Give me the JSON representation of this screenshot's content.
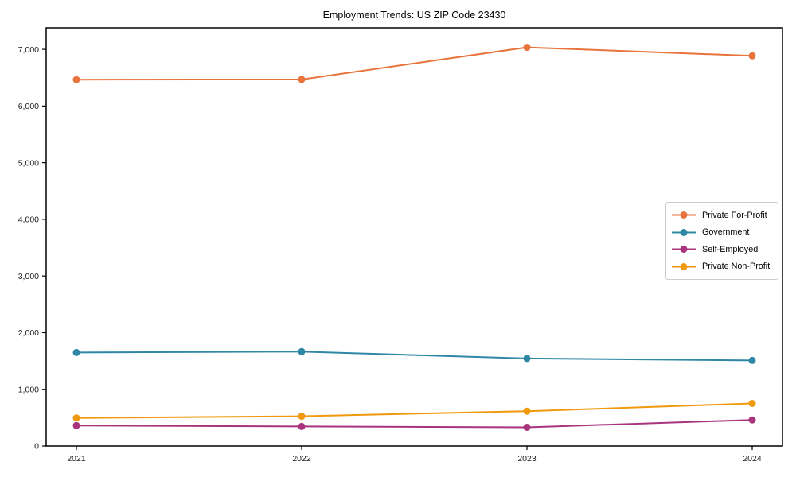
{
  "chart_data": {
    "type": "line",
    "title": "Employment Trends: US ZIP Code 23430",
    "xlabel": "",
    "ylabel": "",
    "categories": [
      "2021",
      "2022",
      "2023",
      "2024"
    ],
    "series": [
      {
        "name": "Private For-Profit",
        "color": "#e8743b",
        "values": [
          6465,
          6470,
          7035,
          6885
        ]
      },
      {
        "name": "Government",
        "color": "#2e87a5",
        "values": [
          1650,
          1665,
          1545,
          1510
        ]
      },
      {
        "name": "Self-Employed",
        "color": "#a8347e",
        "values": [
          360,
          345,
          330,
          460
        ]
      },
      {
        "name": "Private Non-Profit",
        "color": "#f0990e",
        "values": [
          495,
          525,
          615,
          750
        ]
      }
    ],
    "ylim": [
      0,
      7380
    ],
    "yticks": [
      0,
      1000,
      2000,
      3000,
      4000,
      5000,
      6000,
      7000
    ],
    "grid": false,
    "legend_position": "center right",
    "marker": "circle",
    "line_width": 2,
    "marker_radius": 4.5,
    "axis_color": "#000000",
    "tick_label_color": "#1a1a1a",
    "background": "#ffffff"
  }
}
